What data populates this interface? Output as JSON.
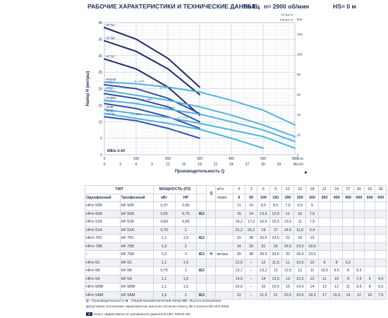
{
  "header": {
    "title": "РАБОЧИЕ ХАРАКТЕРИСТИКИ И ТЕХНИЧЕСКИЕ ДАННЫЕ",
    "freq": "50 Гц",
    "speed": "n= 2900 об/мин",
    "hs": "HS= 0 м"
  },
  "chart_data": {
    "type": "line",
    "ylabel": "Напор H (метры)",
    "xlabel": "Производительность Q",
    "mei": "MEI≥ 0.40",
    "unit_top_right": "US g.p.m.",
    "unit_top_right2": "Imp g.p.m.",
    "unit_right_top": "feet",
    "x_m3h_ticks": [
      0,
      3,
      6,
      9,
      12,
      15,
      18,
      21,
      24,
      27,
      30,
      33,
      36
    ],
    "x_lmin_ticks": [
      0,
      100,
      200,
      300,
      400,
      500,
      600
    ],
    "x_lmin_label": "l/min",
    "x_m3h_label": "m³/h",
    "y_ticks": [
      0,
      5,
      10,
      15,
      20,
      25,
      30,
      35,
      40
    ],
    "y_feet_ticks": [
      0,
      20,
      40,
      60,
      80,
      100,
      120
    ],
    "y_right_label": "feet",
    "series": [
      {
        "name": "HF70A",
        "x": [
          0,
          100,
          200,
          300
        ],
        "y": [
          38.5,
          35,
          29.2,
          20.5
        ]
      },
      {
        "name": "HF70B",
        "x": [
          0,
          100,
          200,
          300
        ],
        "y": [
          34.5,
          31.3,
          26,
          18.2
        ]
      },
      {
        "name": "HF70C",
        "x": [
          0,
          100,
          200,
          300
        ],
        "y": [
          29,
          26,
          20.5,
          12
        ]
      },
      {
        "name": "HF51A",
        "x": [
          0,
          100,
          200,
          300
        ],
        "y": [
          21.2,
          20,
          17.1,
          12.5
        ]
      },
      {
        "name": "HF51B",
        "x": [
          0,
          100,
          200,
          300
        ],
        "y": [
          18.5,
          17,
          14.5,
          10
        ]
      },
      {
        "name": "HF50A",
        "x": [
          0,
          100,
          200,
          300
        ],
        "y": [
          15.5,
          14,
          11.5,
          8
        ]
      },
      {
        "name": "HF50B",
        "x": [
          0,
          100,
          200,
          300
        ],
        "y": [
          11.5,
          10.3,
          8,
          5
        ]
      },
      {
        "name": "HF5A",
        "x": [
          0,
          100,
          200,
          300,
          400,
          500,
          600
        ],
        "y": [
          19.5,
          18,
          16.5,
          14.5,
          12,
          9,
          5.5
        ]
      },
      {
        "name": "HF5BM",
        "x": [
          0,
          100,
          200,
          300,
          400,
          500,
          600
        ],
        "y": [
          16.5,
          15.5,
          13.8,
          12.3,
          10,
          7.5,
          4
        ]
      },
      {
        "name": "HF5B",
        "x": [
          0,
          100,
          200,
          300,
          400,
          500,
          600
        ],
        "y": [
          13.7,
          12.4,
          11.3,
          9.5,
          7.5,
          5.5,
          2
        ]
      },
      {
        "name": "HF5C",
        "x": [
          0,
          100,
          200,
          300,
          400,
          500
        ],
        "y": [
          12.5,
          11,
          9.5,
          7.7,
          5,
          2
        ]
      },
      {
        "name": "HF5AM",
        "x": [
          0,
          100,
          200,
          300,
          400,
          500,
          600
        ],
        "y": [
          22,
          21.5,
          20.5,
          19,
          16.5,
          13.5,
          9
        ]
      }
    ],
    "eff_labels": [
      "η = 41%",
      "η = 47%",
      "η = 61%",
      "η = 71%",
      "η = 72%",
      "η = 68%"
    ],
    "grid": true
  },
  "table": {
    "h_type": "ТИП",
    "h_power": "МОЩНОСТЬ (P2)",
    "h_one": "Однофазный",
    "h_three": "Трехфазный",
    "h_kw": "кВт",
    "h_hp": "HP",
    "h_q": "Q",
    "h_q_u1": "м³/ч",
    "h_q_u2": "л/мин",
    "h_h": "H",
    "h_h_u": "метры",
    "q_m3h": [
      "0",
      "3",
      "6",
      "9",
      "12",
      "15",
      "18",
      "21",
      "24",
      "27",
      "30",
      "33",
      "36"
    ],
    "q_lmin": [
      "0",
      "50",
      "100",
      "150",
      "200",
      "250",
      "300",
      "350",
      "400",
      "450",
      "500",
      "550",
      "600"
    ],
    "rows": [
      {
        "one": "HFm 50B",
        "three": "HF 50B",
        "kw": "0,37",
        "hp": "0,50",
        "ie": "",
        "h": [
          "11",
          "10",
          "9,5",
          "8,5",
          "7,5",
          "6,5",
          "5",
          "",
          "",
          "",
          "",
          "",
          ""
        ]
      },
      {
        "one": "HFm 50A",
        "three": "HF 50A",
        "kw": "0,55",
        "hp": "0,75",
        "ie": "IE2",
        "h": [
          "15",
          "14",
          "13,5",
          "12,5",
          "11",
          "10",
          "7,5",
          "",
          "",
          "",
          "",
          "",
          ""
        ]
      },
      {
        "one": "HFm 51B",
        "three": "HF 51B",
        "kw": "0,60",
        "hp": "0,85",
        "ie": "",
        "h": [
          "18,2",
          "17,2",
          "16,5",
          "15,5",
          "13,5",
          "11",
          "7,5",
          "",
          "",
          "",
          "",
          "",
          ""
        ]
      },
      {
        "one": "HFm 51A",
        "three": "HF 51A",
        "kw": "0,75",
        "hp": "1",
        "ie": "",
        "h": [
          "21,2",
          "20,2",
          "19",
          "17",
          "14,5",
          "11,6",
          "5,4",
          "",
          "",
          "",
          "",
          "",
          ""
        ]
      },
      {
        "one": "HFm 70C",
        "three": "HF 70C",
        "kw": "1,1",
        "hp": "1,5",
        "ie": "IE2",
        "h": [
          "29",
          "28",
          "26,5",
          "24,5",
          "22",
          "18",
          "13",
          "",
          "",
          "",
          "",
          "",
          ""
        ]
      },
      {
        "one": "HFm 70B",
        "three": "HF 70B",
        "kw": "1,5",
        "hp": "2",
        "ie": "",
        "h": [
          "34",
          "33",
          "31",
          "29",
          "26,5",
          "23,5",
          "18,5",
          "",
          "",
          "",
          "",
          "",
          ""
        ]
      },
      {
        "one": "–",
        "three": "HF 70A",
        "kw": "2,2",
        "hp": "3",
        "ie": "IE3",
        "h": [
          "39",
          "38",
          "36,5",
          "34,5",
          "32",
          "28,5",
          "23,5",
          "",
          "",
          "",
          "",
          "",
          ""
        ]
      },
      {
        "one": "HFm 5C",
        "three": "HF 5C",
        "kw": "1,1",
        "hp": "1,5",
        "ie": "",
        "h": [
          "12,5",
          "–",
          "12",
          "11,5",
          "11",
          "10,5",
          "10",
          "9",
          "8",
          "6,5",
          "",
          "",
          ""
        ]
      },
      {
        "one": "HFm 5B",
        "three": "HF 5B",
        "kw": "0,75",
        "hp": "1",
        "ie": "IE2",
        "h": [
          "13,7",
          "–",
          "13,2",
          "13",
          "12,5",
          "12",
          "11",
          "10,5",
          "9,5",
          "8",
          "6,5",
          "",
          ""
        ]
      },
      {
        "one": "HFm 5A",
        "three": "HF 5A",
        "kw": "1,1",
        "hp": "1,5",
        "ie": "",
        "h": [
          "14,5",
          "–",
          "14",
          "13,5",
          "13",
          "12,5",
          "12",
          "11",
          "10",
          "9",
          "7,5",
          "6",
          "4,5"
        ]
      },
      {
        "one": "HFm 5BM",
        "three": "HF 5BM",
        "kw": "1,1",
        "hp": "1,5",
        "ie": "",
        "h": [
          "16,5",
          "–",
          "16",
          "15,5",
          "15",
          "14,5",
          "14",
          "13",
          "12",
          "11",
          "9,5",
          "8",
          "5,5"
        ]
      },
      {
        "one": "HFm 5AM",
        "three": "HF 5AM",
        "kw": "1,5",
        "hp": "2",
        "ie": "IE3",
        "h": [
          "22",
          "–",
          "21,5",
          "21",
          "20,5",
          "19,5",
          "18,5",
          "17",
          "15,5",
          "14",
          "12",
          "10",
          "7,5"
        ]
      }
    ]
  },
  "footer": {
    "l1a": "Q",
    "l1b": " - Производительность ",
    "l1c": "H",
    "l1d": " - Общий манометрический напор ",
    "l1e": "HS",
    "l1f": " - Высота всасывания",
    "l2": "Допустимое отклонение характеристик насосов согласно классу 3В согласно EN ISO 9906.",
    "l3": "Класс эффективности трехфазного двигателя (IEC 60034-30)"
  },
  "colors": {
    "dark": "#1e2b6b",
    "mid": "#2e52a8",
    "light": "#3d8ed0",
    "sky": "#4fb2e2",
    "text": "#1b2f55"
  }
}
